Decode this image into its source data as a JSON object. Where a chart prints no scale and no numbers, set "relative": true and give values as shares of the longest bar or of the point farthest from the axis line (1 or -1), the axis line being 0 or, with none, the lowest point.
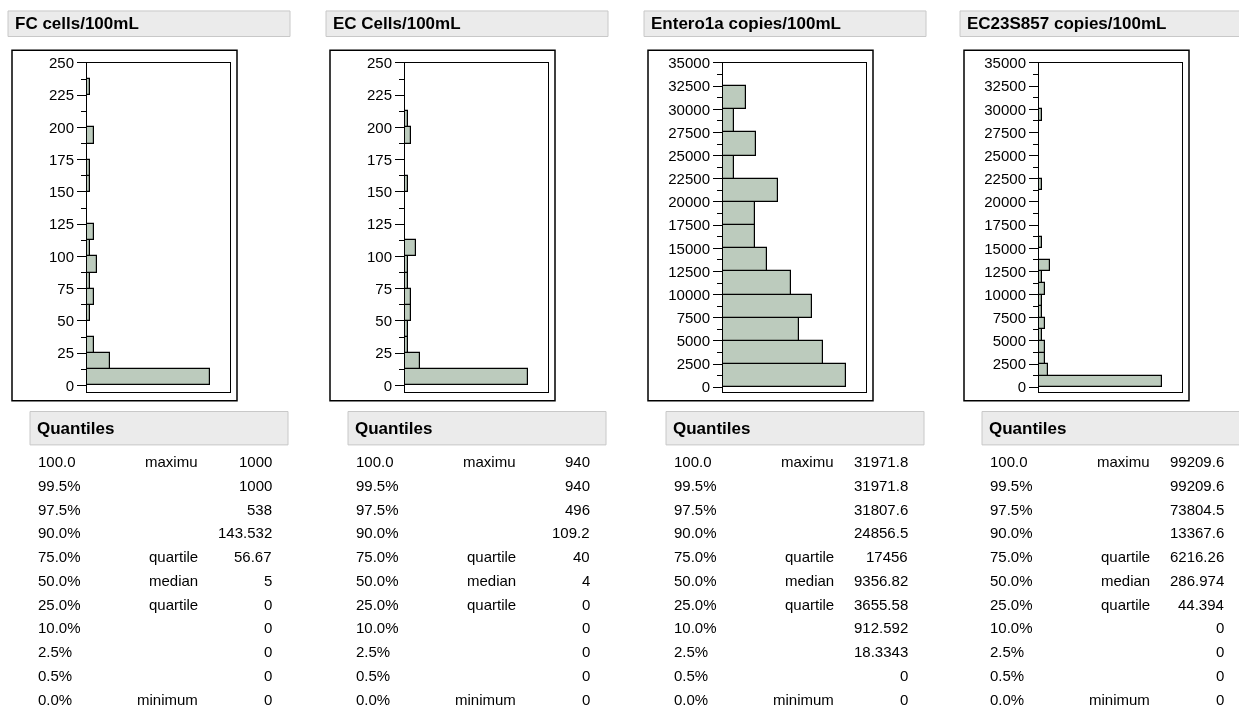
{
  "chart_data": [
    {
      "type": "bar",
      "orientation": "horizontal",
      "relative": true,
      "title": "FC cells/100mL",
      "color": "#bccbbd",
      "x": [
        6.25,
        18.75,
        31.25,
        43.75,
        56.25,
        68.75,
        81.25,
        93.75,
        106.25,
        118.75,
        131.25,
        143.75,
        156.25,
        168.75,
        181.25,
        193.75,
        206.25,
        218.75,
        231.25
      ],
      "values": [
        1,
        0.19,
        0.055,
        0,
        0.027,
        0.055,
        0.027,
        0.08,
        0.027,
        0.055,
        0,
        0,
        0.027,
        0.027,
        0,
        0.055,
        0,
        0,
        0.027
      ],
      "ylim": [
        -5,
        250
      ],
      "yticks": [
        0,
        25,
        50,
        75,
        100,
        125,
        150,
        175,
        200,
        225,
        250
      ],
      "annotations": [
        "Quantiles",
        "100.0 maximu 1000",
        "99.5% 1000",
        "97.5% 538",
        "90.0% 143.532",
        "75.0% quartile 56.67",
        "50.0% median 5",
        "25.0% quartile 0",
        "10.0% 0",
        "2.5% 0",
        "0.5% 0",
        "0.0% minimum 0"
      ]
    },
    {
      "type": "bar",
      "orientation": "horizontal",
      "relative": true,
      "title": "EC Cells/100mL",
      "color": "#bccbbd",
      "x": [
        6.25,
        18.75,
        31.25,
        43.75,
        56.25,
        68.75,
        81.25,
        93.75,
        106.25,
        118.75,
        131.25,
        143.75,
        156.25,
        168.75,
        181.25,
        193.75,
        206.25
      ],
      "values": [
        1,
        0.12,
        0.022,
        0.022,
        0.052,
        0.052,
        0.022,
        0.022,
        0.093,
        0,
        0,
        0,
        0.022,
        0,
        0,
        0.052,
        0.022
      ],
      "ylim": [
        -5,
        250
      ],
      "yticks": [
        0,
        25,
        50,
        75,
        100,
        125,
        150,
        175,
        200,
        225,
        250
      ],
      "annotations": [
        "Quantiles",
        "100.0 maximu 940",
        "99.5% 940",
        "97.5% 496",
        "90.0% 109.2",
        "75.0% quartile 40",
        "50.0% median 4",
        "25.0% quartile 0",
        "10.0% 0",
        "2.5% 0",
        "0.5% 0",
        "0.0% minimum 0"
      ]
    },
    {
      "type": "bar",
      "orientation": "horizontal",
      "relative": true,
      "title": "Entero1a copies/100mL",
      "color": "#bccbbd",
      "x": [
        1250,
        3750,
        6250,
        8750,
        11250,
        13750,
        16250,
        18750,
        21250,
        23750,
        26250,
        28750,
        31250
      ],
      "values": [
        1,
        0.81,
        0.62,
        0.72,
        0.55,
        0.36,
        0.26,
        0.26,
        0.45,
        0.09,
        0.27,
        0.09,
        0.19
      ],
      "ylim": [
        -500,
        35000
      ],
      "yticks": [
        0,
        2500,
        5000,
        7500,
        10000,
        12500,
        15000,
        17500,
        20000,
        22500,
        25000,
        27500,
        30000,
        32500,
        35000
      ],
      "annotations": [
        "Quantiles",
        "100.0 maximu 31971.8",
        "99.5% 31971.8",
        "97.5% 31807.6",
        "90.0% 24856.5",
        "75.0% quartile 17456",
        "50.0% median 9356.82",
        "25.0% quartile 3655.58",
        "10.0% 912.592",
        "2.5% 18.3343",
        "0.5% 0",
        "0.0% minimum 0"
      ]
    },
    {
      "type": "bar",
      "orientation": "horizontal",
      "relative": true,
      "title": "EC23S857 copies/100mL",
      "color": "#bccbbd",
      "x": [
        625,
        1875,
        3125,
        4375,
        5625,
        6875,
        8125,
        9375,
        10625,
        11875,
        13125,
        14375,
        15625,
        16875,
        18125,
        19375,
        20625,
        21875,
        23125,
        24375,
        25625,
        26875,
        28125,
        29375
      ],
      "values": [
        1,
        0.074,
        0.047,
        0.047,
        0.025,
        0.047,
        0.025,
        0.025,
        0.047,
        0.025,
        0.09,
        0,
        0.025,
        0,
        0,
        0,
        0,
        0.025,
        0,
        0,
        0,
        0,
        0,
        0.025
      ],
      "ylim": [
        -500,
        35000
      ],
      "yticks": [
        0,
        2500,
        5000,
        7500,
        10000,
        12500,
        15000,
        17500,
        20000,
        22500,
        25000,
        27500,
        30000,
        32500,
        35000
      ],
      "annotations": [
        "Quantiles",
        "100.0 maximu 99209.6",
        "99.5% 99209.6",
        "97.5% 73804.5",
        "90.0% 13367.6",
        "75.0% quartile 6216.26",
        "50.0% median 286.974",
        "25.0% quartile 44.394",
        "10.0% 0",
        "2.5% 0",
        "0.5% 0",
        "0.0% minimum 0"
      ]
    }
  ]
}
